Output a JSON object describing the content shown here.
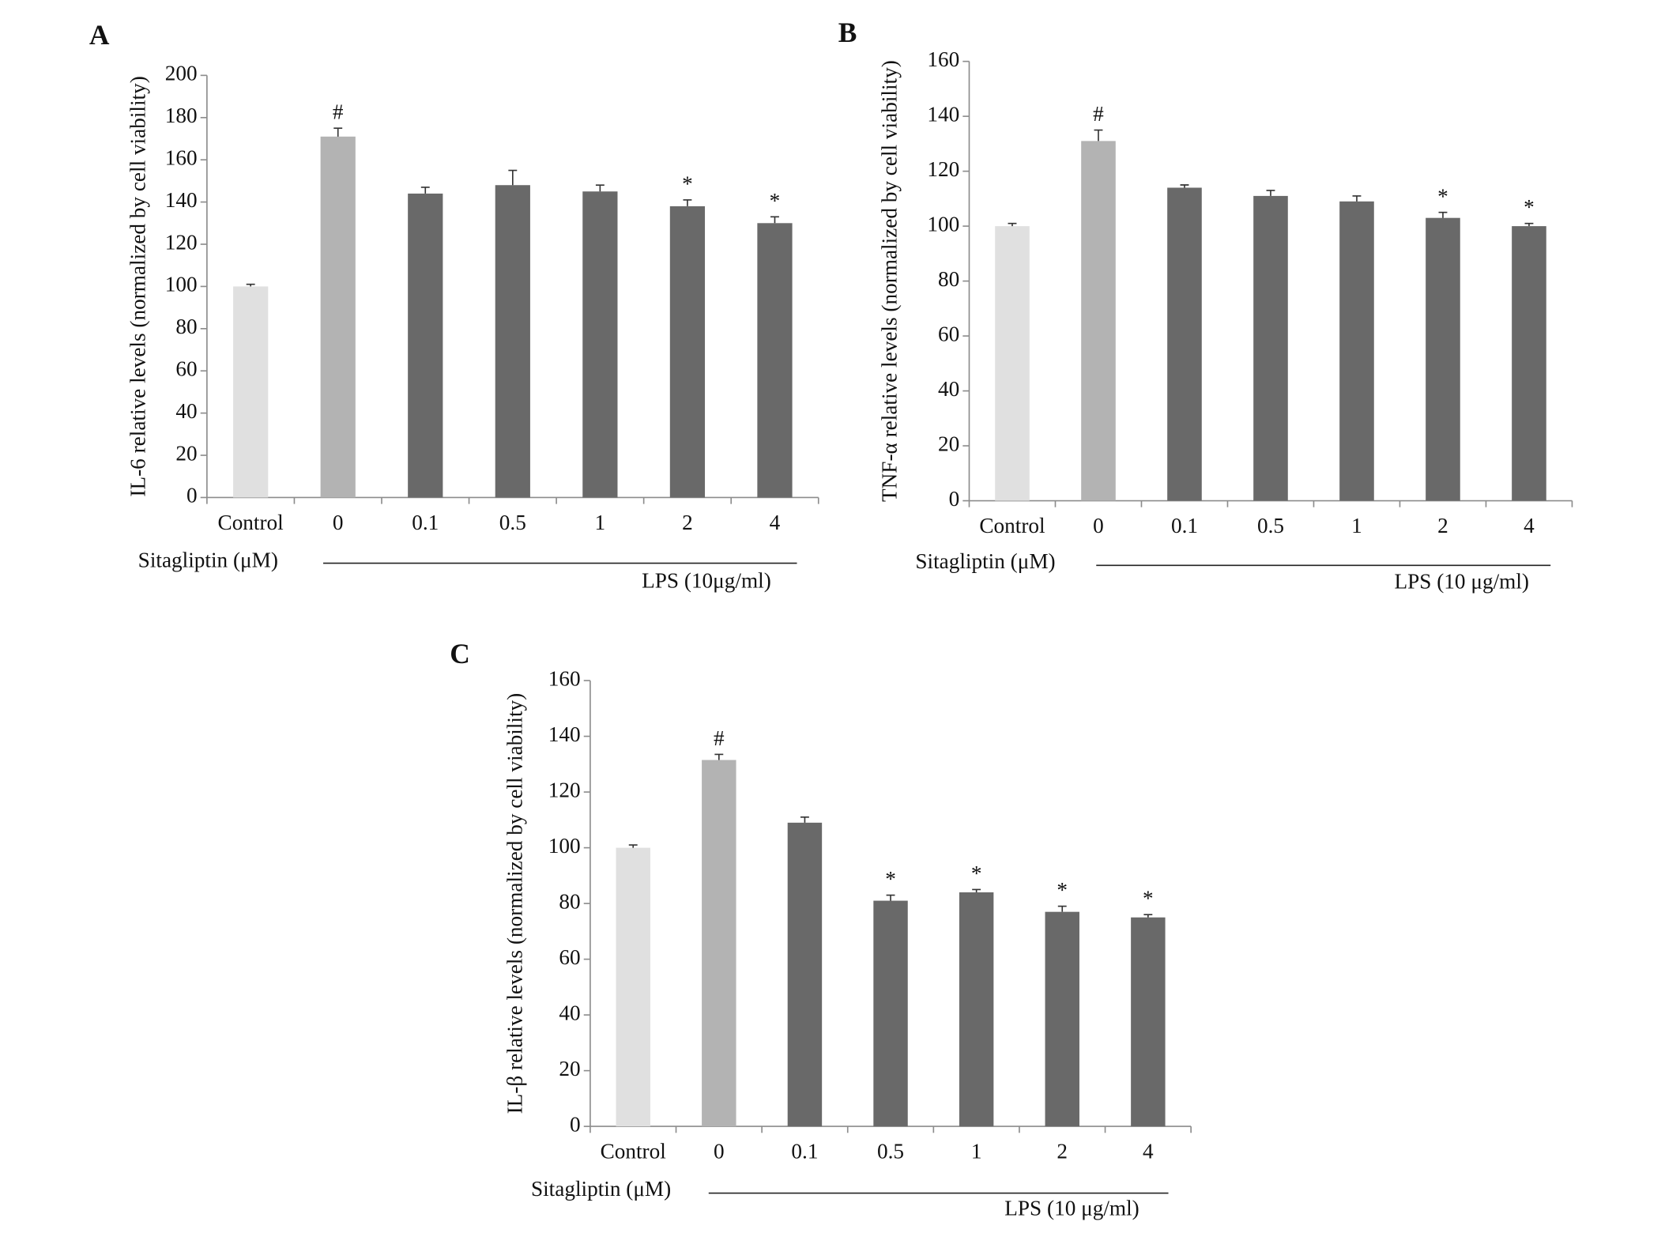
{
  "chart_data": [
    {
      "type": "bar",
      "panel": "A",
      "ylabel": "IL-6  relative levels  (normalized by cell viability)",
      "categories": [
        "Control",
        "0",
        "0.1",
        "0.5",
        "1",
        "2",
        "4"
      ],
      "values": [
        100,
        171,
        144,
        148,
        145,
        138,
        130
      ],
      "errors": [
        1,
        4,
        3,
        7,
        3,
        3,
        3
      ],
      "colors": [
        "#e0e0e0",
        "#b3b3b3",
        "#696969",
        "#696969",
        "#696969",
        "#696969",
        "#696969"
      ],
      "annotations": [
        null,
        "#",
        null,
        null,
        null,
        "*",
        "*"
      ],
      "ylim": [
        0,
        200
      ],
      "yticks": [
        0,
        20,
        40,
        60,
        80,
        100,
        120,
        140,
        160,
        180,
        200
      ],
      "group_label": "Sitagliptin (μM)",
      "treatment_label": "LPS (10μg/ml)"
    },
    {
      "type": "bar",
      "panel": "B",
      "ylabel": "TNF-α relative levels  (normalized by cell viability)",
      "categories": [
        "Control",
        "0",
        "0.1",
        "0.5",
        "1",
        "2",
        "4"
      ],
      "values": [
        100,
        131,
        114,
        111,
        109,
        103,
        100
      ],
      "errors": [
        1,
        4,
        1,
        2,
        2,
        2,
        1
      ],
      "colors": [
        "#e0e0e0",
        "#b3b3b3",
        "#696969",
        "#696969",
        "#696969",
        "#696969",
        "#696969"
      ],
      "annotations": [
        null,
        "#",
        null,
        null,
        null,
        "*",
        "*"
      ],
      "ylim": [
        0,
        160
      ],
      "yticks": [
        0,
        20,
        40,
        60,
        80,
        100,
        120,
        140,
        160
      ],
      "group_label": "Sitagliptin (μM)",
      "treatment_label": "LPS (10 μg/ml)"
    },
    {
      "type": "bar",
      "panel": "C",
      "ylabel": "IL-β  relative levels  (normalized by cell viability)",
      "categories": [
        "Control",
        "0",
        "0.1",
        "0.5",
        "1",
        "2",
        "4"
      ],
      "values": [
        100,
        131.5,
        109,
        81,
        84,
        77,
        75
      ],
      "errors": [
        1,
        2,
        2,
        2,
        1,
        2,
        1
      ],
      "colors": [
        "#e0e0e0",
        "#b3b3b3",
        "#696969",
        "#696969",
        "#696969",
        "#696969",
        "#696969"
      ],
      "annotations": [
        null,
        "#",
        null,
        "*",
        "*",
        "*",
        "*"
      ],
      "ylim": [
        0,
        160
      ],
      "yticks": [
        0,
        20,
        40,
        60,
        80,
        100,
        120,
        140,
        160
      ],
      "group_label": "Sitagliptin (μM)",
      "treatment_label": "LPS (10 μg/ml)"
    }
  ]
}
